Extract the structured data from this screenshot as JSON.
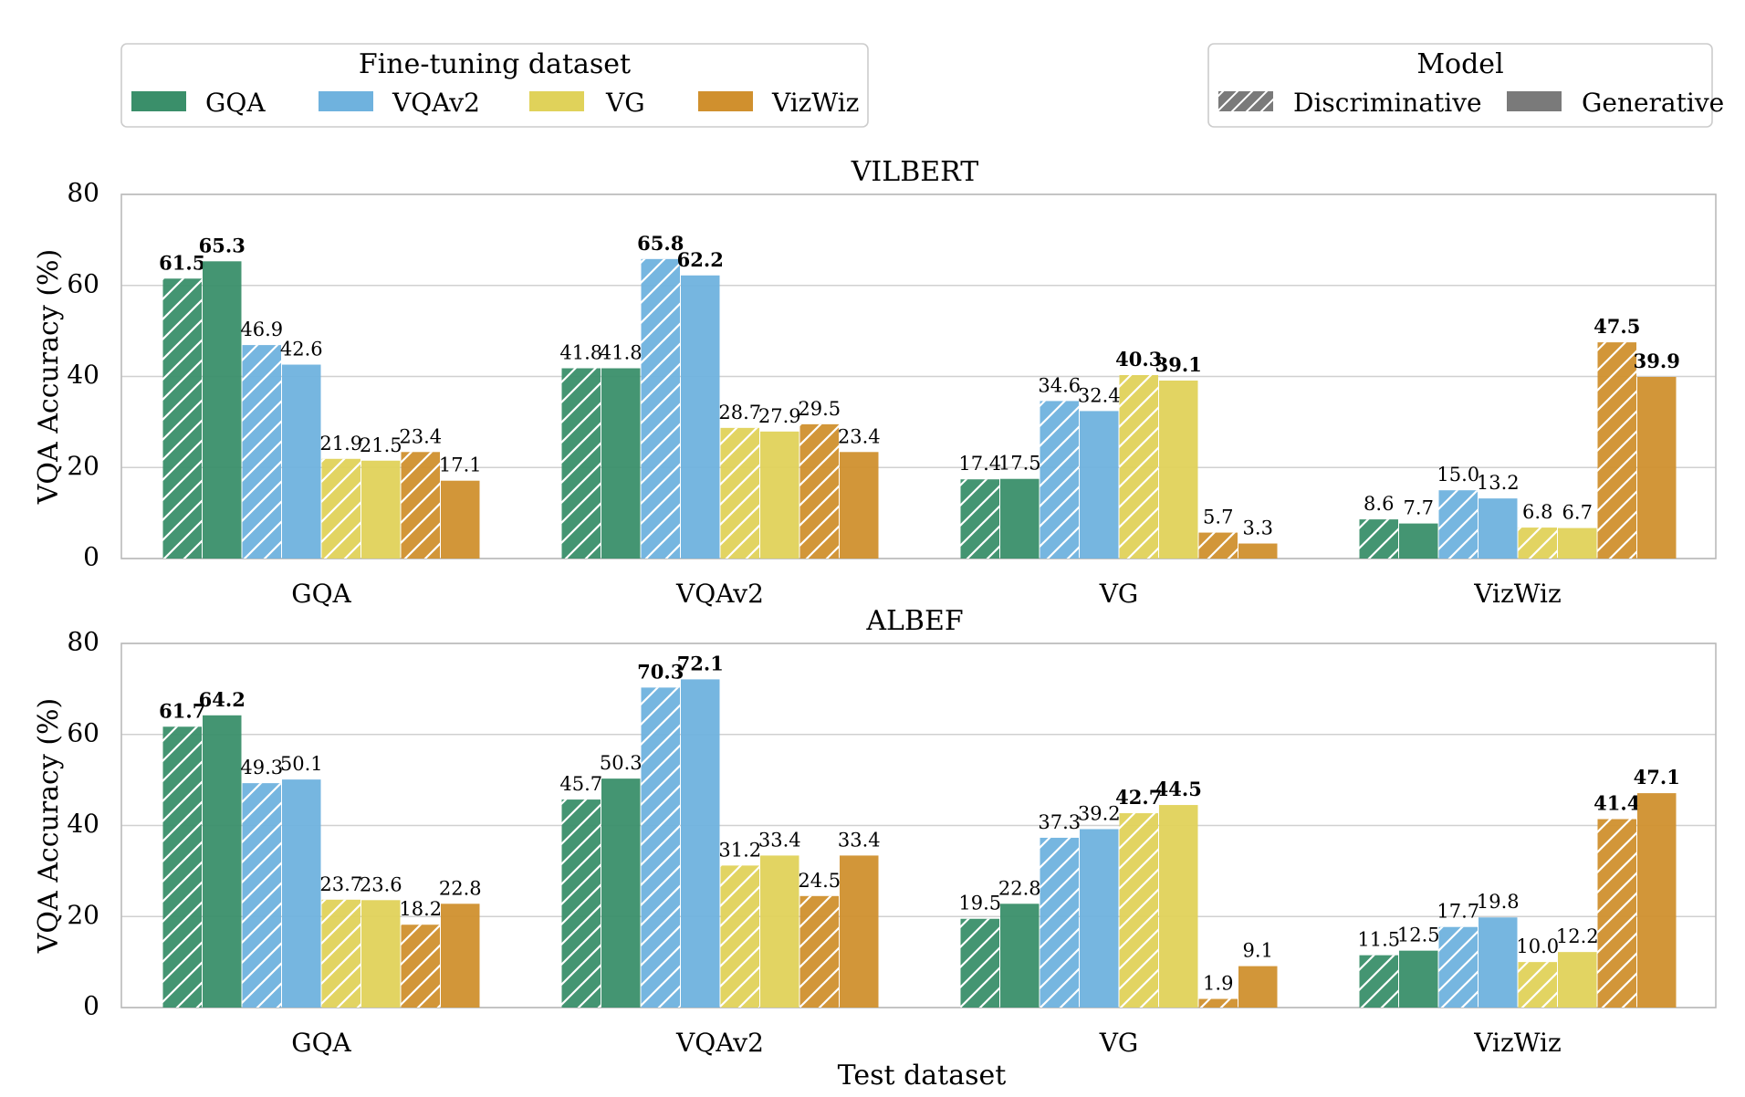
{
  "legend_finetune": {
    "title": "Fine-tuning dataset",
    "items": [
      {
        "label": "GQA",
        "color": "#3a8f6a"
      },
      {
        "label": "VQAv2",
        "color": "#6fb2de"
      },
      {
        "label": "VG",
        "color": "#e0d25a"
      },
      {
        "label": "VizWiz",
        "color": "#d0902e"
      }
    ]
  },
  "legend_model": {
    "title": "Model",
    "items": [
      {
        "label": "Discriminative",
        "pattern": "hatched"
      },
      {
        "label": "Generative",
        "pattern": "solid"
      }
    ]
  },
  "x_axis_title": "Test dataset",
  "chart_data": [
    {
      "type": "bar",
      "title": "VILBERT",
      "ylabel": "VQA Accuracy (%)",
      "xlabel": "",
      "ylim": [
        0,
        80
      ],
      "yticks": [
        0,
        20,
        40,
        60,
        80
      ],
      "grid": true,
      "categories": [
        "GQA",
        "VQAv2",
        "VG",
        "VizWiz"
      ],
      "series": [
        {
          "finetune": "GQA",
          "model": "Discriminative",
          "values": [
            61.5,
            41.8,
            17.4,
            8.6
          ],
          "labels": [
            "61.5",
            "41.8",
            "17.4",
            "8.6"
          ],
          "bold": [
            true,
            false,
            false,
            false
          ]
        },
        {
          "finetune": "GQA",
          "model": "Generative",
          "values": [
            65.3,
            41.8,
            17.5,
            7.7
          ],
          "labels": [
            "65.3",
            "41.8",
            "17.5",
            "7.7"
          ],
          "bold": [
            true,
            false,
            false,
            false
          ]
        },
        {
          "finetune": "VQAv2",
          "model": "Discriminative",
          "values": [
            46.9,
            65.8,
            34.6,
            15.0
          ],
          "labels": [
            "46.9",
            "65.8",
            "34.6",
            "15.0"
          ],
          "bold": [
            false,
            true,
            false,
            false
          ]
        },
        {
          "finetune": "VQAv2",
          "model": "Generative",
          "values": [
            42.6,
            62.2,
            32.4,
            13.2
          ],
          "labels": [
            "42.6",
            "62.2",
            "32.4",
            "13.2"
          ],
          "bold": [
            false,
            true,
            false,
            false
          ]
        },
        {
          "finetune": "VG",
          "model": "Discriminative",
          "values": [
            21.9,
            28.7,
            40.3,
            6.8
          ],
          "labels": [
            "21.9",
            "28.7",
            "40.3",
            "6.8"
          ],
          "bold": [
            false,
            false,
            true,
            false
          ]
        },
        {
          "finetune": "VG",
          "model": "Generative",
          "values": [
            21.5,
            27.9,
            39.1,
            6.7
          ],
          "labels": [
            "21.5",
            "27.9",
            "39.1",
            "6.7"
          ],
          "bold": [
            false,
            false,
            true,
            false
          ]
        },
        {
          "finetune": "VizWiz",
          "model": "Discriminative",
          "values": [
            23.4,
            29.5,
            5.7,
            47.5
          ],
          "labels": [
            "23.4",
            "29.5",
            "5.7",
            "47.5"
          ],
          "bold": [
            false,
            false,
            false,
            true
          ]
        },
        {
          "finetune": "VizWiz",
          "model": "Generative",
          "values": [
            17.1,
            23.4,
            3.3,
            39.9
          ],
          "labels": [
            "17.1",
            "23.4",
            "3.3",
            "39.9"
          ],
          "bold": [
            false,
            false,
            false,
            true
          ]
        }
      ]
    },
    {
      "type": "bar",
      "title": "ALBEF",
      "ylabel": "VQA Accuracy (%)",
      "xlabel": "Test dataset",
      "ylim": [
        0,
        80
      ],
      "yticks": [
        0,
        20,
        40,
        60,
        80
      ],
      "grid": true,
      "categories": [
        "GQA",
        "VQAv2",
        "VG",
        "VizWiz"
      ],
      "series": [
        {
          "finetune": "GQA",
          "model": "Discriminative",
          "values": [
            61.7,
            45.7,
            19.5,
            11.5
          ],
          "labels": [
            "61.7",
            "45.7",
            "19.5",
            "11.5"
          ],
          "bold": [
            true,
            false,
            false,
            false
          ]
        },
        {
          "finetune": "GQA",
          "model": "Generative",
          "values": [
            64.2,
            50.3,
            22.8,
            12.5
          ],
          "labels": [
            "64.2",
            "50.3",
            "22.8",
            "12.5"
          ],
          "bold": [
            true,
            false,
            false,
            false
          ]
        },
        {
          "finetune": "VQAv2",
          "model": "Discriminative",
          "values": [
            49.3,
            70.3,
            37.3,
            17.7
          ],
          "labels": [
            "49.3",
            "70.3",
            "37.3",
            "17.7"
          ],
          "bold": [
            false,
            true,
            false,
            false
          ]
        },
        {
          "finetune": "VQAv2",
          "model": "Generative",
          "values": [
            50.1,
            72.1,
            39.2,
            19.8
          ],
          "labels": [
            "50.1",
            "72.1",
            "39.2",
            "19.8"
          ],
          "bold": [
            false,
            true,
            false,
            false
          ]
        },
        {
          "finetune": "VG",
          "model": "Discriminative",
          "values": [
            23.7,
            31.2,
            42.7,
            10.0
          ],
          "labels": [
            "23.7",
            "31.2",
            "42.7",
            "10.0"
          ],
          "bold": [
            false,
            false,
            true,
            false
          ]
        },
        {
          "finetune": "VG",
          "model": "Generative",
          "values": [
            23.6,
            33.4,
            44.5,
            12.2
          ],
          "labels": [
            "23.6",
            "33.4",
            "44.5",
            "12.2"
          ],
          "bold": [
            false,
            false,
            true,
            false
          ]
        },
        {
          "finetune": "VizWiz",
          "model": "Discriminative",
          "values": [
            18.2,
            24.5,
            1.9,
            41.4
          ],
          "labels": [
            "18.2",
            "24.5",
            "1.9",
            "41.4"
          ],
          "bold": [
            false,
            false,
            false,
            true
          ]
        },
        {
          "finetune": "VizWiz",
          "model": "Generative",
          "values": [
            22.8,
            33.4,
            9.1,
            47.1
          ],
          "labels": [
            "22.8",
            "33.4",
            "9.1",
            "47.1"
          ],
          "bold": [
            false,
            false,
            false,
            true
          ]
        }
      ]
    }
  ]
}
